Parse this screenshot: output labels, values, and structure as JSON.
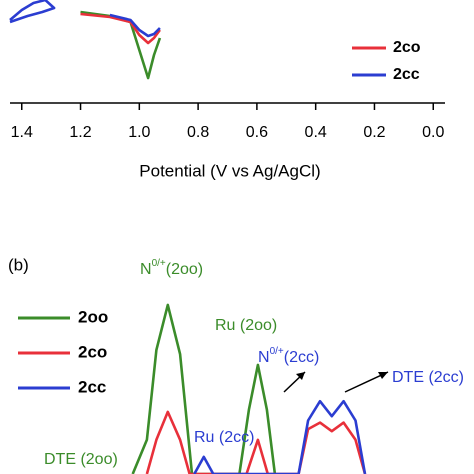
{
  "chart_data": [
    {
      "type": "line",
      "xlabel": "Potential (V vs Ag/AgCl)",
      "xlim": [
        1.44,
        -0.04
      ],
      "xticks": [
        1.4,
        1.2,
        {
          "value": 1,
          "label": "1.0"
        },
        0.8,
        0.6,
        0.4,
        0.2,
        {
          "value": 0,
          "label": "0.0"
        }
      ],
      "ylim": [
        0,
        100
      ],
      "series": [
        {
          "color": "#3b8c2a",
          "x": [
            1.2,
            1.1,
            1.03,
            1.0,
            0.97,
            0.95,
            0.93
          ],
          "values": [
            88,
            84,
            78,
            50,
            22,
            45,
            62
          ]
        },
        {
          "name": "2co",
          "color": "#e8303a",
          "x": [
            1.2,
            1.1,
            1.03,
            1.0,
            0.97,
            0.95,
            0.93
          ],
          "values": [
            86,
            83,
            78,
            65,
            57,
            62,
            70
          ]
        },
        {
          "name": "2cc",
          "color": "#2b3dd1",
          "x": [
            1.44,
            1.4,
            1.36,
            1.32,
            1.29,
            1.33,
            1.38,
            1.44,
            1.2,
            1.1,
            1.03,
            1.0,
            0.97,
            0.95,
            0.93
          ],
          "values": [
            80,
            90,
            97,
            100,
            92,
            88,
            84,
            78,
            null,
            85,
            80,
            70,
            64,
            66,
            72
          ]
        }
      ]
    },
    {
      "type": "line",
      "panel_label": "(b)",
      "xlim": [
        0,
        100
      ],
      "ylim": [
        0,
        100
      ],
      "series": [
        {
          "name": "2oo",
          "color": "#3b8c2a",
          "x": [
            28,
            31,
            33,
            35.4,
            38,
            40.5,
            50.5,
            52.5,
            54.4,
            56.3,
            58
          ],
          "values": [
            0,
            16,
            58,
            79,
            56,
            0,
            0,
            30,
            51,
            30,
            0
          ]
        },
        {
          "name": "2co",
          "color": "#e8303a",
          "x": [
            31,
            33,
            35.4,
            38,
            40,
            52,
            54.4,
            56.5,
            63,
            65,
            67.5,
            70,
            72.5,
            75,
            77
          ],
          "values": [
            0,
            16,
            29,
            16,
            0,
            0,
            16,
            0,
            0,
            21,
            24,
            20,
            24,
            16,
            0
          ]
        },
        {
          "name": "2cc",
          "color": "#2b3dd1",
          "x": [
            41,
            43,
            45,
            63,
            65,
            67.5,
            70,
            72.5,
            75,
            77
          ],
          "values": [
            0,
            8,
            0,
            0,
            25,
            34,
            27,
            34,
            25,
            0
          ]
        }
      ],
      "annotations": [
        {
          "base": "N",
          "sup": "0/+",
          "rest": "(2oo)",
          "color": "#3b8c2a"
        },
        {
          "base": "Ru (2oo)",
          "color": "#3b8c2a"
        },
        {
          "base": "N",
          "sup": "0/+",
          "rest": "(2cc)",
          "color": "#2b3dd1"
        },
        {
          "base": "DTE (2cc)",
          "color": "#2b3dd1"
        },
        {
          "base": "Ru (2cc)",
          "color": "#2b3dd1"
        },
        {
          "base": "DTE (2oo)",
          "color": "#3b8c2a"
        }
      ]
    }
  ]
}
